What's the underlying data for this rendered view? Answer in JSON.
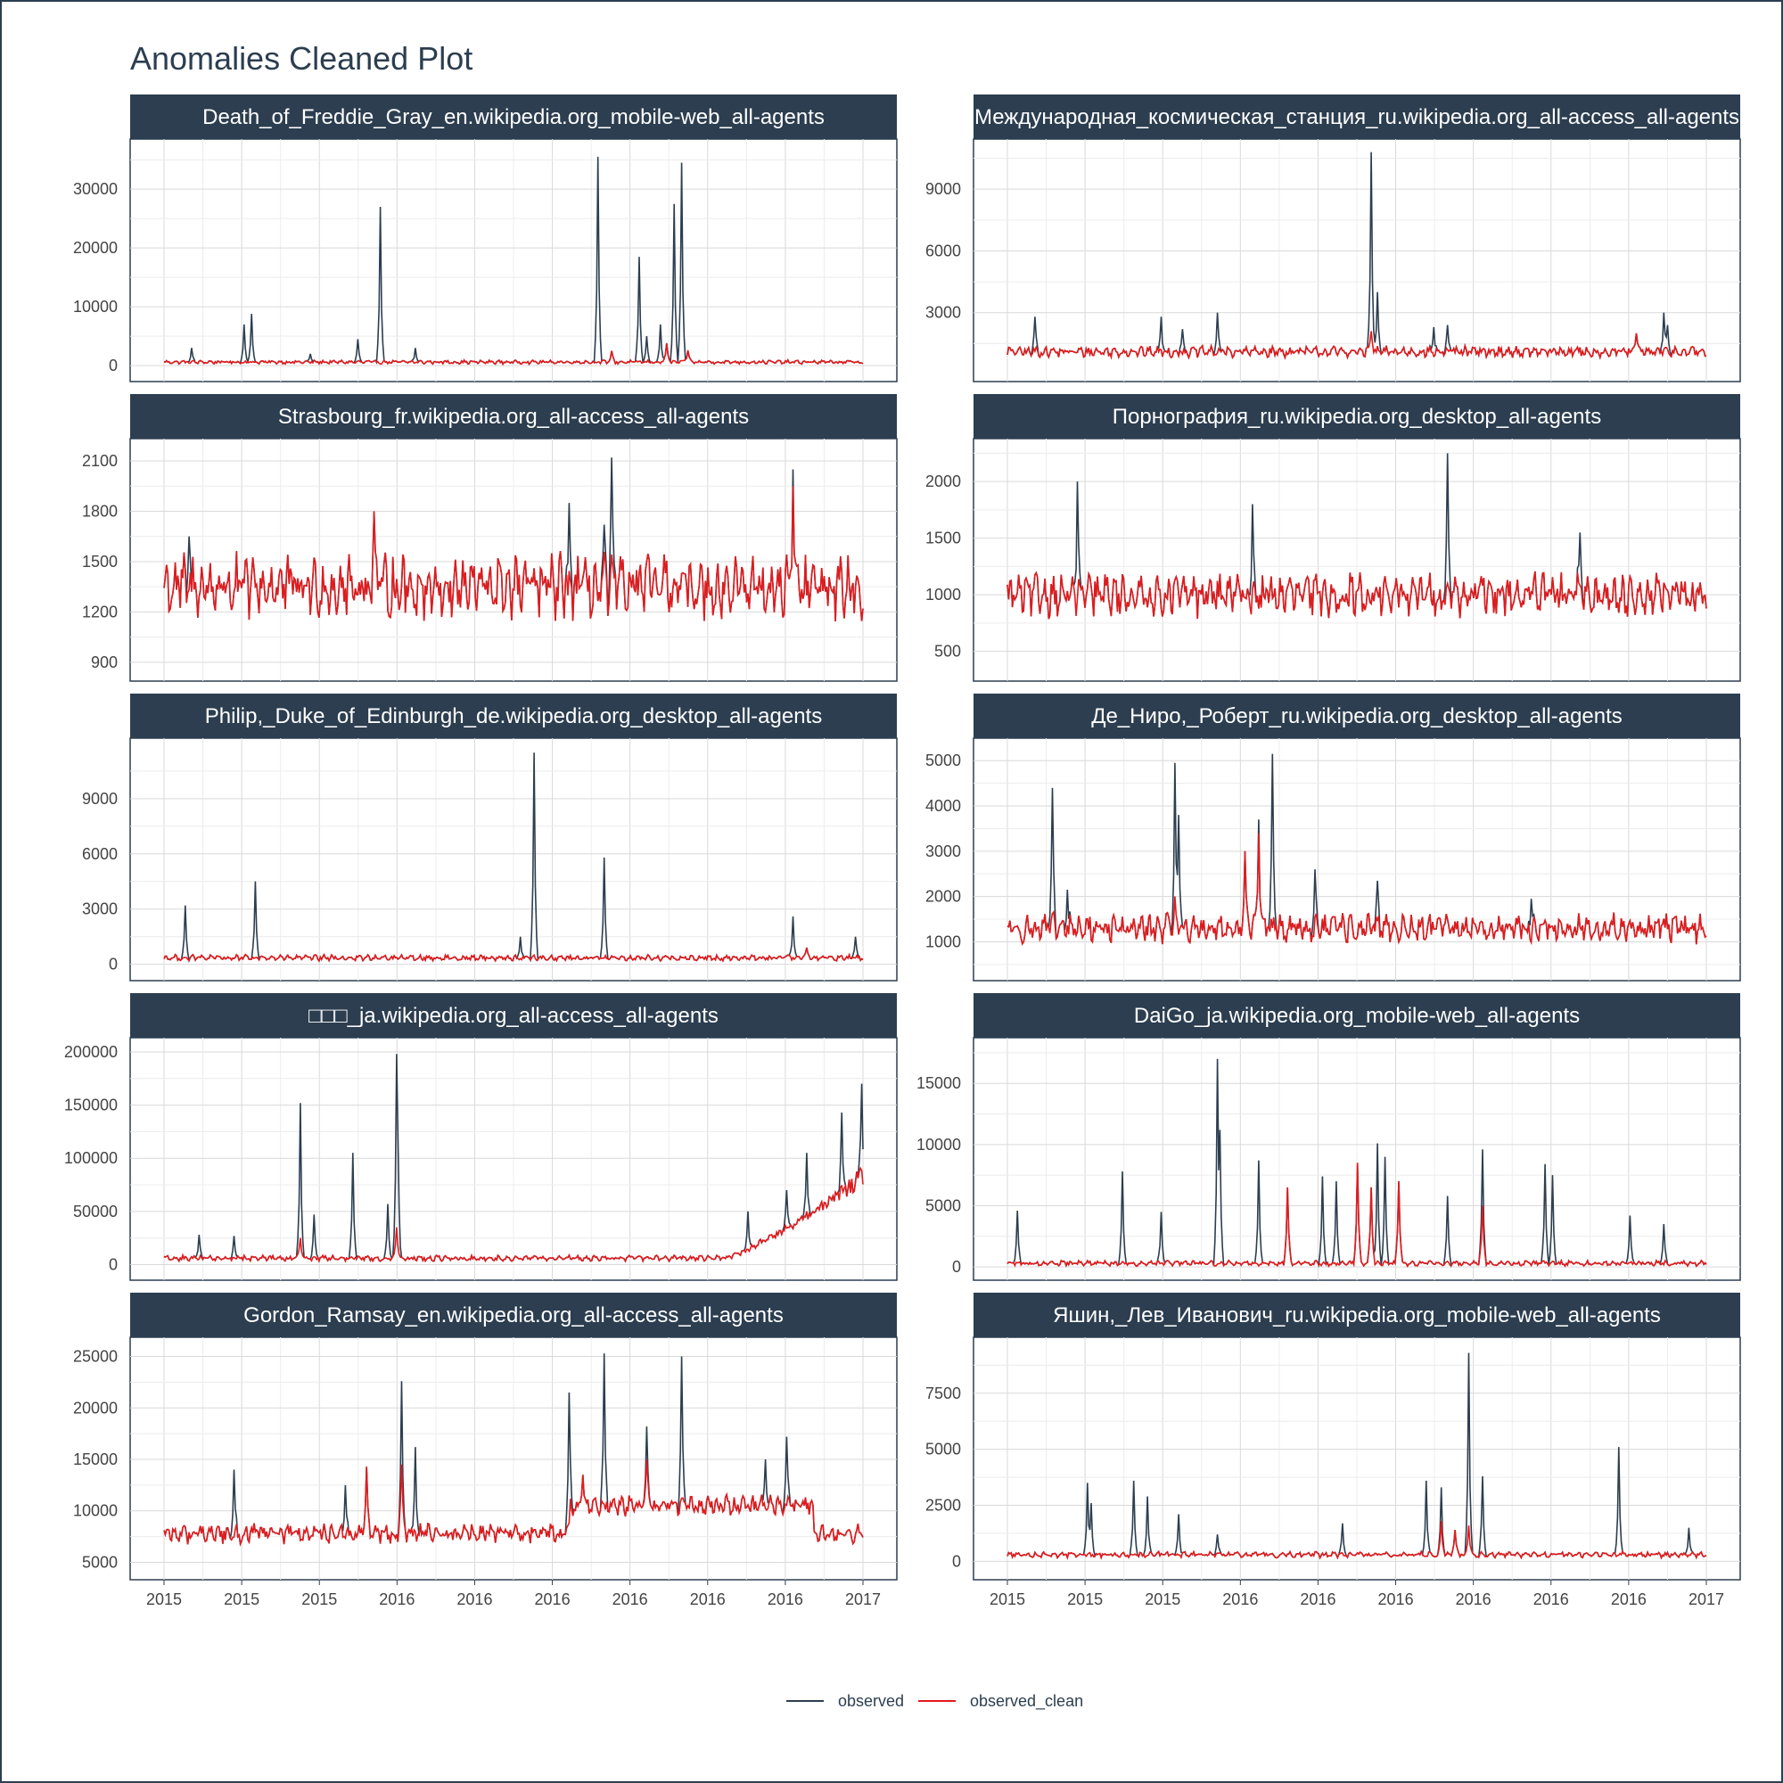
{
  "title": "Anomalies Cleaned Plot",
  "colors": {
    "observed": "#2c3e50",
    "observed_clean": "#e31a1c",
    "strip": "#2c3e50",
    "grid": "#d9d9d9"
  },
  "legend": [
    {
      "label": "observed",
      "color": "#2c3e50"
    },
    {
      "label": "observed_clean",
      "color": "#e31a1c"
    }
  ],
  "x_axis": {
    "tick_labels": [
      "2015",
      "2015",
      "2015",
      "2016",
      "2016",
      "2016",
      "2016",
      "2016",
      "2016",
      "2017"
    ]
  },
  "chart_data": {
    "type": "line",
    "facets": 10,
    "x_range": [
      "2015-07-01",
      "2016-12-31"
    ],
    "panels": [
      {
        "title": "Death_of_Freddie_Gray_en.wikipedia.org_mobile-web_all-agents",
        "yticks": [
          0,
          10000,
          20000,
          30000
        ],
        "ylim": [
          -1500,
          37000
        ],
        "base": {
          "level": 600,
          "amp": 300
        },
        "observed_spikes": [
          [
            0.04,
            3000
          ],
          [
            0.115,
            7000
          ],
          [
            0.125,
            8800
          ],
          [
            0.21,
            2000
          ],
          [
            0.278,
            4500
          ],
          [
            0.31,
            27000
          ],
          [
            0.36,
            3000
          ],
          [
            0.62,
            35500
          ],
          [
            0.68,
            18500
          ],
          [
            0.69,
            5000
          ],
          [
            0.73,
            27500
          ],
          [
            0.74,
            34500
          ],
          [
            0.71,
            7000
          ]
        ],
        "clean_spikes": [
          [
            0.64,
            2500
          ],
          [
            0.72,
            3800
          ],
          [
            0.75,
            2600
          ]
        ],
        "x": [
          "2015-07-01",
          "2016-12-31"
        ]
      },
      {
        "title": "Международная_космическая_станция_ru.wikipedia.org_all-access_all-agents",
        "yticks": [
          3000,
          6000,
          9000
        ],
        "ylim": [
          0,
          11000
        ],
        "base": {
          "level": 1100,
          "amp": 250
        },
        "observed_spikes": [
          [
            0.04,
            2800
          ],
          [
            0.22,
            2800
          ],
          [
            0.25,
            2200
          ],
          [
            0.3,
            3000
          ],
          [
            0.52,
            10800
          ],
          [
            0.53,
            4000
          ],
          [
            0.61,
            2300
          ],
          [
            0.63,
            2400
          ],
          [
            0.94,
            3000
          ],
          [
            0.945,
            2400
          ]
        ],
        "clean_spikes": [
          [
            0.52,
            2100
          ],
          [
            0.9,
            2000
          ]
        ],
        "x": [
          "2015-07-01",
          "2016-12-31"
        ]
      },
      {
        "title": "Strasbourg_fr.wikipedia.org_all-access_all-agents",
        "yticks": [
          900,
          1200,
          1500,
          1800,
          2100
        ],
        "ylim": [
          830,
          2180
        ],
        "base": {
          "level": 1350,
          "amp": 180
        },
        "observed_spikes": [
          [
            0.035,
            1650
          ],
          [
            0.58,
            1850
          ],
          [
            0.64,
            2120
          ],
          [
            0.63,
            1720
          ],
          [
            0.9,
            2050
          ]
        ],
        "clean_spikes": [
          [
            0.3,
            1800
          ],
          [
            0.9,
            1950
          ]
        ],
        "x": [
          "2015-07-01",
          "2016-12-31"
        ]
      },
      {
        "title": "Порнография_ru.wikipedia.org_desktop_all-agents",
        "yticks": [
          500,
          1000,
          1500,
          2000
        ],
        "ylim": [
          300,
          2300
        ],
        "base": {
          "level": 1000,
          "amp": 180
        },
        "observed_spikes": [
          [
            0.1,
            2000
          ],
          [
            0.35,
            1800
          ],
          [
            0.33,
            600
          ],
          [
            0.63,
            2250
          ],
          [
            0.82,
            1550
          ]
        ],
        "clean_spikes": [
          [
            0.63,
            1100
          ],
          [
            0.82,
            1080
          ]
        ],
        "x": [
          "2015-07-01",
          "2016-12-31"
        ]
      },
      {
        "title": "Philip,_Duke_of_Edinburgh_de.wikipedia.org_desktop_all-agents",
        "yticks": [
          0,
          3000,
          6000,
          9000
        ],
        "ylim": [
          -500,
          11800
        ],
        "base": {
          "level": 350,
          "amp": 150
        },
        "observed_spikes": [
          [
            0.03,
            3200
          ],
          [
            0.13,
            4500
          ],
          [
            0.53,
            11500
          ],
          [
            0.63,
            5800
          ],
          [
            0.51,
            1500
          ],
          [
            0.9,
            2600
          ],
          [
            0.99,
            1500
          ]
        ],
        "clean_spikes": [
          [
            0.92,
            900
          ]
        ],
        "x": [
          "2015-07-01",
          "2016-12-31"
        ]
      },
      {
        "title": "Де_Ниро,_Роберт_ru.wikipedia.org_desktop_all-agents",
        "yticks": [
          1000,
          2000,
          3000,
          4000,
          5000
        ],
        "ylim": [
          300,
          5300
        ],
        "base": {
          "level": 1300,
          "amp": 300
        },
        "observed_spikes": [
          [
            0.065,
            4400
          ],
          [
            0.085,
            2150
          ],
          [
            0.24,
            4950
          ],
          [
            0.245,
            3800
          ],
          [
            0.38,
            5150
          ],
          [
            0.36,
            3700
          ],
          [
            0.44,
            2600
          ],
          [
            0.53,
            2350
          ],
          [
            0.75,
            1950
          ]
        ],
        "clean_spikes": [
          [
            0.36,
            3400
          ],
          [
            0.34,
            3000
          ],
          [
            0.24,
            2000
          ]
        ],
        "x": [
          "2015-07-01",
          "2016-12-31"
        ]
      },
      {
        "title": "□□□_ja.wikipedia.org_all-access_all-agents",
        "yticks": [
          0,
          50000,
          100000,
          150000,
          200000
        ],
        "ylim": [
          -8000,
          205000
        ],
        "base": {
          "level": 6000,
          "amp": 2500
        },
        "observed_spikes": [
          [
            0.05,
            28000
          ],
          [
            0.1,
            27000
          ],
          [
            0.195,
            152000
          ],
          [
            0.215,
            47000
          ],
          [
            0.27,
            105000
          ],
          [
            0.32,
            57000
          ],
          [
            0.335,
            86000
          ],
          [
            0.333,
            198000
          ],
          [
            0.835,
            50000
          ],
          [
            0.92,
            105000
          ],
          [
            0.97,
            143000
          ],
          [
            0.999,
            170000
          ],
          [
            0.89,
            70000
          ]
        ],
        "clean_spikes": [
          [
            0.195,
            25000
          ],
          [
            0.333,
            35000
          ]
        ],
        "trend_end": 80000,
        "x": [
          "2015-07-01",
          "2016-12-31"
        ]
      },
      {
        "title": "DaiGo_ja.wikipedia.org_mobile-web_all-agents",
        "yticks": [
          0,
          5000,
          10000,
          15000
        ],
        "ylim": [
          -500,
          18000
        ],
        "base": {
          "level": 300,
          "amp": 200
        },
        "observed_spikes": [
          [
            0.015,
            4600
          ],
          [
            0.165,
            7800
          ],
          [
            0.22,
            4500
          ],
          [
            0.3,
            17000
          ],
          [
            0.305,
            11200
          ],
          [
            0.36,
            8700
          ],
          [
            0.45,
            7400
          ],
          [
            0.47,
            7000
          ],
          [
            0.53,
            10100
          ],
          [
            0.54,
            9000
          ],
          [
            0.63,
            5800
          ],
          [
            0.68,
            9600
          ],
          [
            0.77,
            8400
          ],
          [
            0.78,
            7500
          ],
          [
            0.89,
            4200
          ],
          [
            0.94,
            3500
          ]
        ],
        "clean_spikes": [
          [
            0.4,
            6500
          ],
          [
            0.5,
            8500
          ],
          [
            0.52,
            6500
          ],
          [
            0.56,
            7000
          ],
          [
            0.68,
            5000
          ]
        ],
        "x": [
          "2015-07-01",
          "2016-12-31"
        ]
      },
      {
        "title": "Gordon_Ramsay_en.wikipedia.org_all-access_all-agents",
        "yticks": [
          5000,
          10000,
          15000,
          20000,
          25000
        ],
        "ylim": [
          4000,
          26000
        ],
        "base": {
          "level": 7800,
          "amp": 900
        },
        "observed_spikes": [
          [
            0.1,
            14000
          ],
          [
            0.26,
            12500
          ],
          [
            0.34,
            22600
          ],
          [
            0.36,
            16200
          ],
          [
            0.58,
            21500
          ],
          [
            0.63,
            25300
          ],
          [
            0.69,
            18200
          ],
          [
            0.74,
            25000
          ],
          [
            0.89,
            17200
          ],
          [
            0.86,
            15000
          ]
        ],
        "clean_spikes": [
          [
            0.34,
            14500
          ],
          [
            0.29,
            14300
          ],
          [
            0.6,
            13500
          ],
          [
            0.69,
            15000
          ]
        ],
        "high_window": [
          0.58,
          0.93
        ],
        "x": [
          "2015-07-01",
          "2016-12-31"
        ]
      },
      {
        "title": "Яшин,_Лев_Иванович_ru.wikipedia.org_mobile-web_all-agents",
        "yticks": [
          0,
          2500,
          5000,
          7500
        ],
        "ylim": [
          -500,
          9600
        ],
        "base": {
          "level": 300,
          "amp": 120
        },
        "observed_spikes": [
          [
            0.115,
            3500
          ],
          [
            0.12,
            2600
          ],
          [
            0.18,
            3600
          ],
          [
            0.2,
            2900
          ],
          [
            0.245,
            2100
          ],
          [
            0.3,
            1200
          ],
          [
            0.48,
            1700
          ],
          [
            0.6,
            3600
          ],
          [
            0.62,
            3300
          ],
          [
            0.66,
            9300
          ],
          [
            0.68,
            3800
          ],
          [
            0.875,
            5100
          ],
          [
            0.975,
            1500
          ]
        ],
        "clean_spikes": [
          [
            0.62,
            1800
          ],
          [
            0.66,
            1600
          ],
          [
            0.64,
            1400
          ]
        ],
        "x": [
          "2015-07-01",
          "2016-12-31"
        ]
      }
    ]
  }
}
